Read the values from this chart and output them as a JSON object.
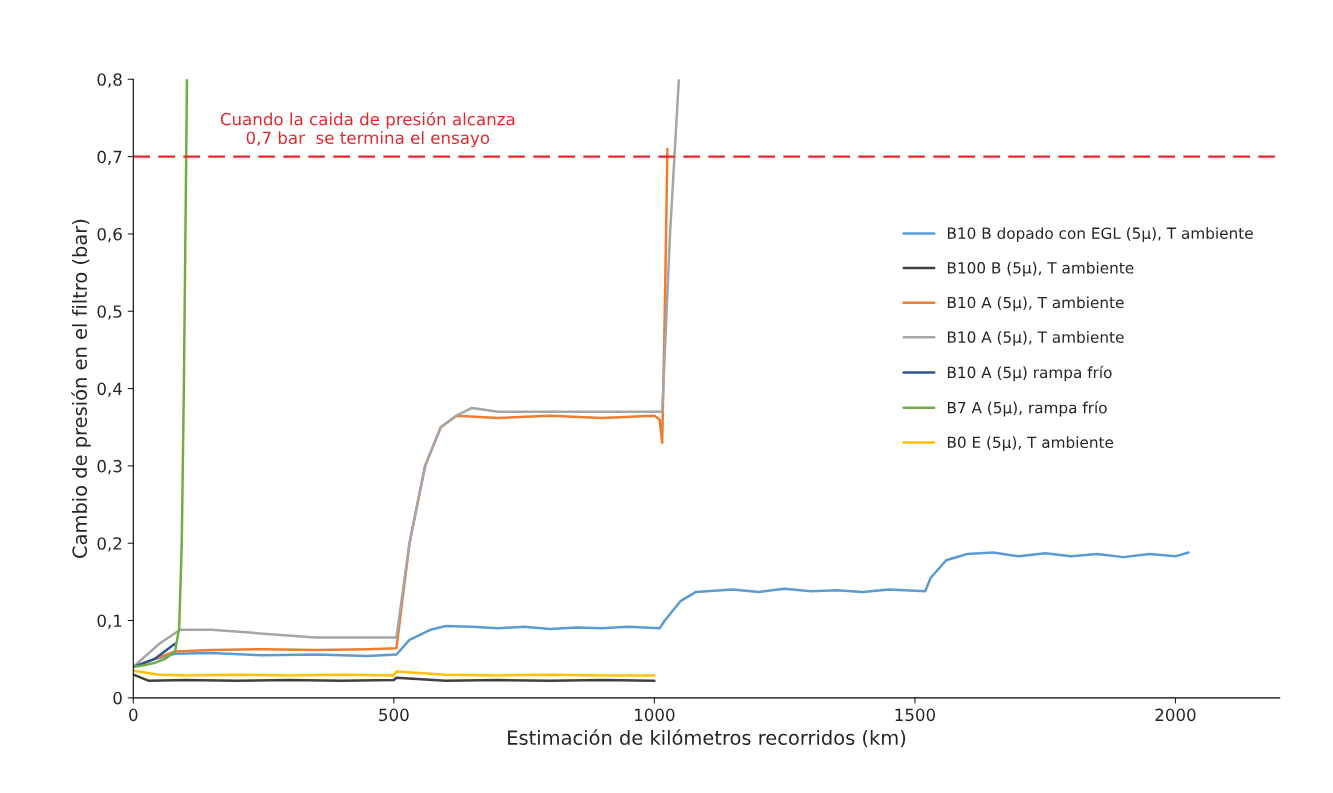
{
  "chart_data": {
    "type": "line",
    "xlabel": "Estimación de kilómetros recorridos (km)",
    "ylabel": "Cambio de presión en el filtro (bar)",
    "xlim": [
      0,
      2200
    ],
    "xticks": [
      0,
      500,
      1000,
      1500,
      2000
    ],
    "ylim": [
      0,
      0.8
    ],
    "yticks": [
      {
        "value": 0,
        "label": "0"
      },
      {
        "value": 0.1,
        "label": "0,1"
      },
      {
        "value": 0.2,
        "label": "0,2"
      },
      {
        "value": 0.3,
        "label": "0,3"
      },
      {
        "value": 0.4,
        "label": "0,4"
      },
      {
        "value": 0.5,
        "label": "0,5"
      },
      {
        "value": 0.6,
        "label": "0,6"
      },
      {
        "value": 0.7,
        "label": "0,7"
      },
      {
        "value": 0.8,
        "label": "0,8"
      }
    ],
    "grid": false,
    "legend": "right",
    "line_style": "solid",
    "marker": "none",
    "ref_lines": [
      {
        "axis": "y",
        "value": 0.7,
        "label": "Cuando la caida de presión alcanza\n0,7 bar  se termina el ensayo",
        "color": "#e0282e",
        "line_style": "dashed"
      }
    ],
    "series": [
      {
        "name": "B10 B dopado con EGL (5µ), T ambiente",
        "color": "#5b9bd5",
        "x": [
          0,
          40,
          80,
          150,
          250,
          350,
          450,
          505,
          530,
          570,
          600,
          650,
          700,
          750,
          800,
          850,
          900,
          950,
          1010,
          1020,
          1050,
          1080,
          1150,
          1200,
          1250,
          1300,
          1350,
          1400,
          1450,
          1520,
          1530,
          1560,
          1600,
          1650,
          1700,
          1750,
          1800,
          1850,
          1900,
          1950,
          2000,
          2025
        ],
        "values": [
          0.04,
          0.05,
          0.057,
          0.058,
          0.055,
          0.056,
          0.054,
          0.056,
          0.075,
          0.088,
          0.093,
          0.092,
          0.09,
          0.092,
          0.089,
          0.091,
          0.09,
          0.092,
          0.09,
          0.1,
          0.125,
          0.137,
          0.14,
          0.137,
          0.141,
          0.138,
          0.139,
          0.137,
          0.14,
          0.138,
          0.155,
          0.178,
          0.186,
          0.188,
          0.183,
          0.187,
          0.183,
          0.186,
          0.182,
          0.186,
          0.183,
          0.188
        ]
      },
      {
        "name": "B100 B (5µ), T ambiente",
        "color": "#404040",
        "x": [
          0,
          30,
          100,
          200,
          300,
          400,
          500,
          505,
          600,
          700,
          800,
          900,
          1000
        ],
        "values": [
          0.03,
          0.022,
          0.023,
          0.022,
          0.023,
          0.022,
          0.023,
          0.026,
          0.022,
          0.023,
          0.022,
          0.023,
          0.022
        ]
      },
      {
        "name": "B10 A (5µ), T ambiente",
        "color": "#ed7d31",
        "x": [
          0,
          40,
          80,
          150,
          250,
          350,
          450,
          505,
          530,
          560,
          590,
          620,
          700,
          800,
          900,
          1000,
          1010,
          1015,
          1020,
          1025
        ],
        "values": [
          0.04,
          0.05,
          0.06,
          0.062,
          0.063,
          0.062,
          0.063,
          0.064,
          0.2,
          0.3,
          0.35,
          0.365,
          0.362,
          0.365,
          0.362,
          0.365,
          0.36,
          0.33,
          0.5,
          0.71
        ]
      },
      {
        "name": "B10 A (5µ), T ambiente",
        "color": "#a5a5a5",
        "x": [
          0,
          50,
          90,
          150,
          250,
          350,
          450,
          505,
          530,
          560,
          590,
          620,
          650,
          700,
          800,
          900,
          1000,
          1015,
          1030,
          1047
        ],
        "values": [
          0.04,
          0.07,
          0.088,
          0.088,
          0.083,
          0.078,
          0.078,
          0.078,
          0.2,
          0.3,
          0.35,
          0.365,
          0.375,
          0.37,
          0.37,
          0.37,
          0.37,
          0.37,
          0.6,
          0.8
        ]
      },
      {
        "name": "B10 A (5µ) rampa frío",
        "color": "#2f5597",
        "x": [
          0,
          20,
          40,
          60,
          80
        ],
        "values": [
          0.04,
          0.045,
          0.05,
          0.06,
          0.07
        ]
      },
      {
        "name": "B7 A (5µ), rampa frío",
        "color": "#70ad47",
        "x": [
          0,
          20,
          40,
          60,
          80,
          88,
          93,
          97,
          100,
          103
        ],
        "values": [
          0.04,
          0.042,
          0.045,
          0.05,
          0.06,
          0.09,
          0.2,
          0.4,
          0.6,
          0.8
        ]
      },
      {
        "name": "B0 E (5µ), T ambiente",
        "color": "#ffc000",
        "x": [
          0,
          50,
          100,
          200,
          300,
          400,
          500,
          505,
          600,
          700,
          800,
          900,
          1000
        ],
        "values": [
          0.035,
          0.03,
          0.029,
          0.03,
          0.029,
          0.03,
          0.029,
          0.034,
          0.03,
          0.029,
          0.03,
          0.029,
          0.029
        ]
      }
    ]
  }
}
